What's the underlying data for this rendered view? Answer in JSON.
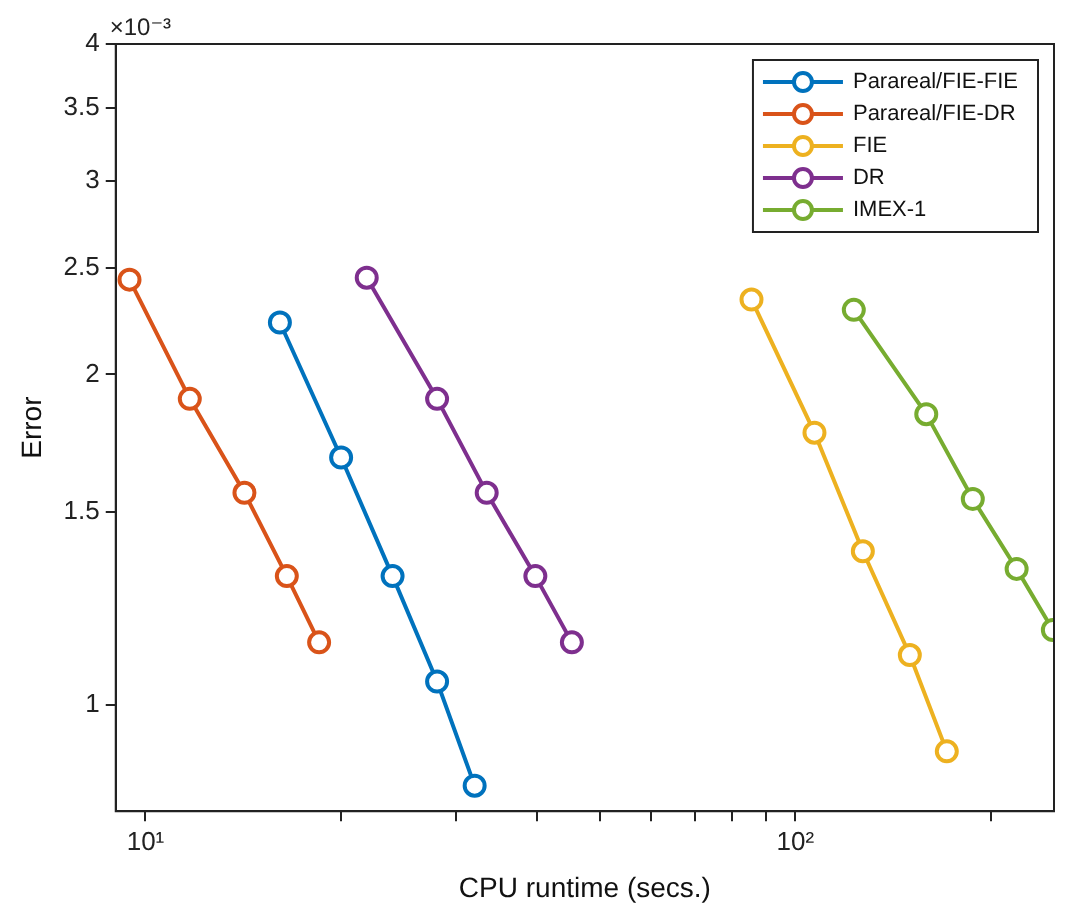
{
  "chart_data": {
    "type": "line",
    "xlabel": "CPU runtime (secs.)",
    "ylabel": "Error",
    "log": "xy",
    "grid": false,
    "legend": "top right",
    "marker": "circle",
    "line_style": "solid",
    "xlim": [
      9,
      250
    ],
    "xticks": [
      {
        "value": 10,
        "label": "10¹"
      },
      {
        "value": 20,
        "label": null
      },
      {
        "value": 30,
        "label": null
      },
      {
        "value": 40,
        "label": null
      },
      {
        "value": 50,
        "label": null
      },
      {
        "value": 60,
        "label": null
      },
      {
        "value": 70,
        "label": null
      },
      {
        "value": 80,
        "label": null
      },
      {
        "value": 90,
        "label": null
      },
      {
        "value": 100,
        "label": "10²"
      },
      {
        "value": 200,
        "label": null
      }
    ],
    "ylim": [
      0.8,
      4
    ],
    "yticks": [
      1,
      1.5,
      2,
      2.5,
      3,
      3.5,
      4
    ],
    "annotations": [
      "×10⁻³"
    ],
    "series": [
      {
        "name": "Parareal/FIE-FIE",
        "color": "#0072bd",
        "x": [
          16.1,
          20.0,
          24.0,
          28.1,
          32.1
        ],
        "values": [
          2.23,
          1.68,
          1.31,
          1.05,
          0.844
        ]
      },
      {
        "name": "Parareal/FIE-DR",
        "color": "#d95319",
        "x": [
          9.45,
          11.7,
          14.2,
          16.5,
          18.5
        ],
        "values": [
          2.44,
          1.9,
          1.56,
          1.31,
          1.14
        ]
      },
      {
        "name": "FIE",
        "color": "#edb120",
        "x": [
          85.6,
          107,
          127,
          150,
          171
        ],
        "values": [
          2.34,
          1.77,
          1.38,
          1.11,
          0.907
        ]
      },
      {
        "name": "DR",
        "color": "#7e2f8e",
        "x": [
          21.9,
          28.1,
          33.5,
          39.8,
          45.3
        ],
        "values": [
          2.45,
          1.9,
          1.56,
          1.31,
          1.14
        ]
      },
      {
        "name": "IMEX-1",
        "color": "#77ac30",
        "x": [
          123,
          159,
          187.5,
          219,
          249
        ],
        "values": [
          2.29,
          1.84,
          1.54,
          1.33,
          1.17
        ]
      }
    ]
  }
}
